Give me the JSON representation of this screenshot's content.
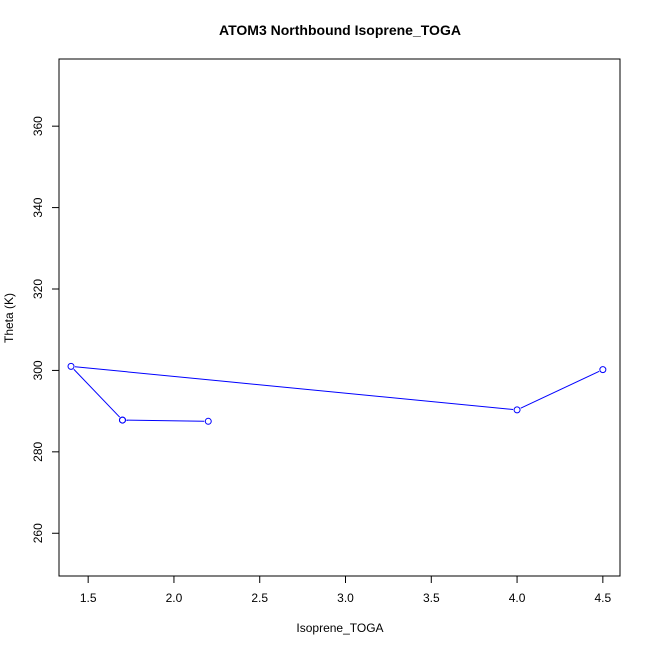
{
  "chart_data": {
    "type": "line",
    "title": "ATOM3 Northbound Isoprene_TOGA",
    "xlabel": "Isoprene_TOGA",
    "ylabel": "Theta (K)",
    "xlim": [
      1.33,
      4.6
    ],
    "ylim": [
      249.5,
      376.5
    ],
    "xticks": [
      "1.5",
      "2.0",
      "2.5",
      "3.0",
      "3.5",
      "4.0",
      "4.5"
    ],
    "yticks": [
      "260",
      "280",
      "300",
      "320",
      "340",
      "360"
    ],
    "grid": false,
    "series": [
      {
        "color": "#0000ff",
        "marker": "open-circle",
        "points": [
          {
            "x": 2.2,
            "y": 287.5
          },
          {
            "x": 1.7,
            "y": 287.8
          },
          {
            "x": 1.7,
            "y": 287.8
          },
          {
            "x": 1.4,
            "y": 301.0
          },
          {
            "x": 4.0,
            "y": 290.3
          },
          {
            "x": 4.5,
            "y": 300.2
          }
        ]
      }
    ]
  }
}
